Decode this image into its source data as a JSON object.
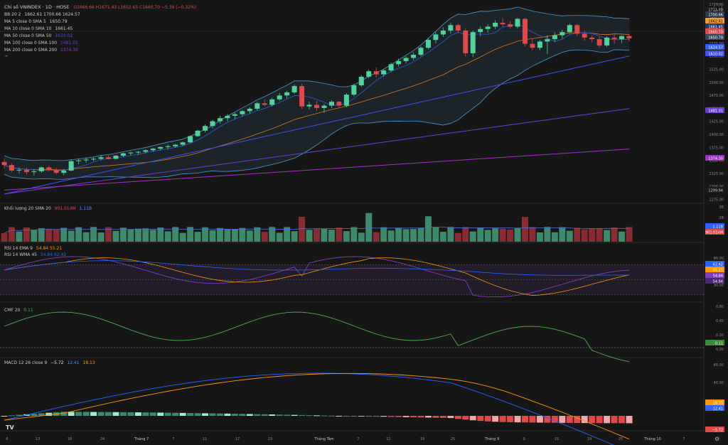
{
  "header": {
    "symbol": "Chỉ số VNINDEX · 1D · HOSE",
    "ohlc": "O1666.66  H1671.43  L1652.65  C1660.70  −5.39 (−0.32%)"
  },
  "main_legend": [
    {
      "label": "BB 20 2",
      "values": "1662.61  1700.66  1624.57",
      "color": "#cfcfcf"
    },
    {
      "label": "MA 5 close 0 SMA 5",
      "values": "1650.79",
      "color": "#cfcfcf"
    },
    {
      "label": "MA 10 close 0 SMA 10",
      "values": "1661.45",
      "color": "#cfcfcf"
    },
    {
      "label": "MA 50 close 0 SMA 50",
      "values": "1610.02",
      "color": "#3f51f5"
    },
    {
      "label": "MA 100 close 0 SMA 100",
      "values": "1481.01",
      "color": "#6b3fd4"
    },
    {
      "label": "MA 200 close 0 SMA 200",
      "values": "1374.30",
      "color": "#a032c8"
    }
  ],
  "volume_legend": {
    "label": "Khối lượng 20 SMA 20",
    "v1": "901.014M",
    "v2": "1.11B"
  },
  "rsi_legend": [
    {
      "label": "RSI 14 EMA 9",
      "values": "54.84  55.21",
      "color": "#ff9800"
    },
    {
      "label": "RSI 14 WMA 45",
      "values": "54.84  62.42",
      "color": "#2962ff"
    }
  ],
  "cmf_legend": {
    "label": "CMF 20",
    "value": "0.11"
  },
  "macd_legend": {
    "label": "MACD 12 26 close 9",
    "v1": "−5.72",
    "v2": "12.41",
    "v3": "18.13"
  },
  "price_axis": {
    "top_label": "Đỉnh",
    "bottom_label": "Đáy",
    "ticks": [
      "1725.00",
      "1650.00",
      "1600.00",
      "1575.00",
      "1550.00",
      "1525.00",
      "1500.00",
      "1475.00",
      "1450.00",
      "1425.00",
      "1400.00",
      "1375.00",
      "1350.00",
      "1325.00",
      "1300.00",
      "1275.00"
    ]
  },
  "price_badges": [
    {
      "text": "1711.49",
      "bg": "#1a1a1a",
      "fg": "#d0d0d0"
    },
    {
      "text": "1700.66",
      "bg": "#2a3a4a",
      "fg": "#ffffff"
    },
    {
      "text": "1662.61",
      "bg": "#f0a030",
      "fg": "#000000"
    },
    {
      "text": "1661.45",
      "bg": "#2a3a6a",
      "fg": "#ffffff"
    },
    {
      "text": "1660.70",
      "bg": "#e0484a",
      "fg": "#ffffff"
    },
    {
      "text": "1650.79",
      "bg": "#3a4a5a",
      "fg": "#ffffff"
    },
    {
      "text": "1624.57",
      "bg": "#2962ff",
      "fg": "#ffffff"
    },
    {
      "text": "1610.02",
      "bg": "#3f51f5",
      "fg": "#ffffff"
    },
    {
      "text": "1481.01",
      "bg": "#6b3fd4",
      "fg": "#ffffff"
    },
    {
      "text": "1374.30",
      "bg": "#a032c8",
      "fg": "#ffffff"
    },
    {
      "text": "1299.94",
      "bg": "#1a1a1a",
      "fg": "#d0d0d0"
    }
  ],
  "volume_axis": {
    "ticks": [
      "3B",
      "2B"
    ],
    "badges": [
      {
        "text": "1.11B",
        "bg": "#2962ff"
      },
      {
        "text": "901.014M",
        "bg": "#e0484a"
      }
    ]
  },
  "rsi_axis": {
    "ticks": [
      "80.00",
      "60.00",
      "40.00",
      "30.00"
    ],
    "badges": [
      {
        "text": "62.42",
        "bg": "#2962ff"
      },
      {
        "text": "55.21",
        "bg": "#ff9800"
      },
      {
        "text": "54.84",
        "bg": "#7e3fbf"
      },
      {
        "text": "54.84",
        "bg": "#4a2a6a"
      }
    ]
  },
  "cmf_axis": {
    "ticks": [
      "0.60",
      "0.40",
      "0.20",
      "0.00"
    ],
    "badge": {
      "text": "0.11",
      "bg": "#3c8a3c"
    }
  },
  "macd_axis": {
    "ticks": [
      "60.00",
      "40.00"
    ],
    "badges": [
      {
        "text": "18.13",
        "bg": "#ff9800"
      },
      {
        "text": "12.41",
        "bg": "#2962ff"
      },
      {
        "text": "−5.72",
        "bg": "#e0484a"
      }
    ]
  },
  "time_axis": {
    "labels": [
      "6",
      "13",
      "18",
      "24",
      "Tháng 7",
      "7",
      "11",
      "17",
      "23",
      "Tháng Tám",
      "7",
      "12",
      "19",
      "25",
      "Tháng 9",
      "9",
      "15",
      "19",
      "25",
      "Tháng 10",
      "7"
    ]
  },
  "colors": {
    "up": "#4fd39a",
    "down": "#e0484a",
    "vol_up": "#3d8a6c",
    "vol_down": "#8a2b33",
    "ma5": "#2a5fd8",
    "ma10": "#d67c1f",
    "bb": "#4a9ad0"
  },
  "chart_data": {
    "type": "line",
    "title": "Chỉ số VNINDEX · 1D · HOSE",
    "series_note": "candlestick OHLC, daily",
    "candles": [
      [
        1344,
        1352,
        1328,
        1336
      ],
      [
        1336,
        1340,
        1318,
        1322
      ],
      [
        1322,
        1330,
        1314,
        1324
      ],
      [
        1324,
        1330,
        1312,
        1318
      ],
      [
        1318,
        1326,
        1310,
        1320
      ],
      [
        1320,
        1332,
        1316,
        1330
      ],
      [
        1330,
        1334,
        1320,
        1324
      ],
      [
        1324,
        1328,
        1312,
        1316
      ],
      [
        1316,
        1326,
        1310,
        1322
      ],
      [
        1322,
        1350,
        1320,
        1346
      ],
      [
        1346,
        1352,
        1338,
        1348
      ],
      [
        1348,
        1356,
        1342,
        1350
      ],
      [
        1350,
        1356,
        1346,
        1352
      ],
      [
        1352,
        1360,
        1348,
        1356
      ],
      [
        1356,
        1360,
        1350,
        1352
      ],
      [
        1352,
        1362,
        1350,
        1360
      ],
      [
        1360,
        1368,
        1356,
        1366
      ],
      [
        1366,
        1370,
        1360,
        1368
      ],
      [
        1368,
        1372,
        1362,
        1370
      ],
      [
        1370,
        1376,
        1366,
        1374
      ],
      [
        1374,
        1380,
        1370,
        1378
      ],
      [
        1378,
        1384,
        1374,
        1382
      ],
      [
        1382,
        1388,
        1376,
        1384
      ],
      [
        1384,
        1390,
        1380,
        1388
      ],
      [
        1388,
        1396,
        1384,
        1394
      ],
      [
        1394,
        1412,
        1392,
        1410
      ],
      [
        1410,
        1426,
        1408,
        1424
      ],
      [
        1424,
        1440,
        1420,
        1436
      ],
      [
        1436,
        1452,
        1430,
        1448
      ],
      [
        1448,
        1462,
        1442,
        1456
      ],
      [
        1456,
        1466,
        1448,
        1462
      ],
      [
        1462,
        1470,
        1454,
        1466
      ],
      [
        1466,
        1476,
        1460,
        1474
      ],
      [
        1474,
        1484,
        1468,
        1480
      ],
      [
        1480,
        1498,
        1476,
        1494
      ],
      [
        1494,
        1504,
        1486,
        1490
      ],
      [
        1490,
        1508,
        1486,
        1504
      ],
      [
        1504,
        1520,
        1500,
        1514
      ],
      [
        1514,
        1526,
        1506,
        1522
      ],
      [
        1522,
        1542,
        1518,
        1538
      ],
      [
        1538,
        1544,
        1480,
        1486
      ],
      [
        1486,
        1498,
        1478,
        1490
      ],
      [
        1490,
        1500,
        1474,
        1482
      ],
      [
        1482,
        1492,
        1470,
        1488
      ],
      [
        1488,
        1502,
        1482,
        1498
      ],
      [
        1498,
        1500,
        1484,
        1488
      ],
      [
        1488,
        1520,
        1484,
        1516
      ],
      [
        1516,
        1544,
        1512,
        1540
      ],
      [
        1540,
        1566,
        1536,
        1562
      ],
      [
        1562,
        1580,
        1558,
        1576
      ],
      [
        1576,
        1586,
        1560,
        1568
      ],
      [
        1568,
        1582,
        1562,
        1578
      ],
      [
        1578,
        1598,
        1574,
        1594
      ],
      [
        1594,
        1608,
        1588,
        1602
      ],
      [
        1602,
        1614,
        1596,
        1610
      ],
      [
        1610,
        1624,
        1604,
        1618
      ],
      [
        1618,
        1640,
        1614,
        1636
      ],
      [
        1636,
        1660,
        1632,
        1656
      ],
      [
        1656,
        1676,
        1648,
        1670
      ],
      [
        1670,
        1688,
        1664,
        1680
      ],
      [
        1680,
        1700,
        1672,
        1694
      ],
      [
        1694,
        1698,
        1674,
        1680
      ],
      [
        1680,
        1686,
        1614,
        1622
      ],
      [
        1622,
        1680,
        1612,
        1676
      ],
      [
        1676,
        1690,
        1666,
        1684
      ],
      [
        1684,
        1696,
        1674,
        1690
      ],
      [
        1690,
        1706,
        1684,
        1700
      ],
      [
        1700,
        1712,
        1690,
        1696
      ],
      [
        1696,
        1704,
        1686,
        1690
      ],
      [
        1690,
        1712,
        1686,
        1710
      ],
      [
        1710,
        1712,
        1640,
        1646
      ],
      [
        1646,
        1660,
        1630,
        1636
      ],
      [
        1636,
        1656,
        1630,
        1652
      ],
      [
        1652,
        1668,
        1620,
        1658
      ],
      [
        1658,
        1676,
        1650,
        1668
      ],
      [
        1668,
        1682,
        1660,
        1676
      ],
      [
        1676,
        1698,
        1672,
        1694
      ],
      [
        1694,
        1696,
        1666,
        1672
      ],
      [
        1672,
        1680,
        1654,
        1662
      ],
      [
        1662,
        1668,
        1650,
        1658
      ],
      [
        1658,
        1664,
        1636,
        1642
      ],
      [
        1642,
        1666,
        1638,
        1662
      ],
      [
        1662,
        1670,
        1646,
        1658
      ],
      [
        1658,
        1668,
        1648,
        1666
      ],
      [
        1666,
        1672,
        1652,
        1660
      ]
    ]
  }
}
